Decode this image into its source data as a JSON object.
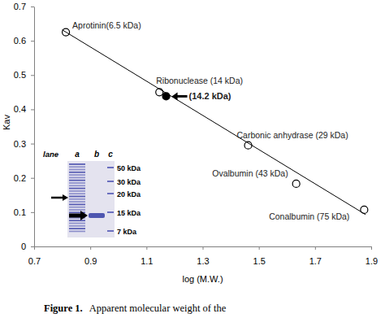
{
  "chart_data": {
    "type": "scatter",
    "x_label": "log (M.W.)",
    "y_label": "Kav",
    "xlim": [
      0.7,
      1.9
    ],
    "xticks": [
      0.7,
      0.9,
      1.1,
      1.3,
      1.5,
      1.7,
      1.9
    ],
    "ylim": [
      0,
      0.7
    ],
    "yticks": [
      0,
      0.1,
      0.2,
      0.3,
      0.4,
      0.5,
      0.6,
      0.7
    ],
    "series": [
      {
        "type": "scatter",
        "marker": "circle-open",
        "color": "#000000",
        "x": [
          0.813,
          1.146,
          1.462,
          1.633,
          1.875
        ],
        "values": [
          0.625,
          0.45,
          0.295,
          0.183,
          0.107
        ],
        "point_labels": [
          "Aprotinin(6.5 kDa)",
          "Ribonuclease (14 kDa)",
          "Carbonic anhydrase (29 kDa)",
          "Ovalbumin (43 kDa)",
          "Conalbumin (75 kDa)"
        ]
      },
      {
        "type": "scatter",
        "marker": "circle-filled",
        "color": "#000000",
        "x": [
          1.17
        ],
        "values": [
          0.438
        ],
        "point_labels": [
          "(14.2 kDa)"
        ]
      },
      {
        "type": "line",
        "line_style": "solid",
        "color": "#000000",
        "x": [
          0.8,
          1.88
        ],
        "values": [
          0.632,
          0.093
        ]
      }
    ]
  },
  "inset": {
    "lane_label": "lane",
    "lanes": [
      "a",
      "b",
      "c"
    ],
    "marker_labels": [
      "50 kDa",
      "30 kDa",
      "20 kDa",
      "15 kDa",
      "7 kDa"
    ]
  },
  "caption": {
    "label": "Figure 1.",
    "text": "Apparent molecular weight of the"
  }
}
